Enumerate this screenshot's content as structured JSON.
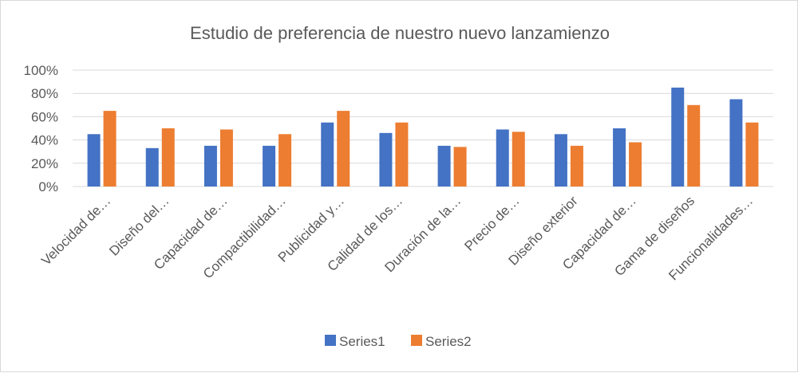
{
  "chart_data": {
    "type": "bar",
    "title": "Estudio de preferencia de nuestro nuevo lanzamienzo",
    "categories": [
      "Velocidad de…",
      "Diseño del…",
      "Capacidad de…",
      "Compactibilidad…",
      "Publicidad y…",
      "Calidad de los…",
      "Duración de la…",
      "Precio de…",
      "Diseño exterior",
      "Capacidad de…",
      "Gama de diseños",
      "Funcionalidades…"
    ],
    "series": [
      {
        "name": "Series1",
        "color": "#4472c4",
        "values": [
          0.45,
          0.33,
          0.35,
          0.35,
          0.55,
          0.46,
          0.35,
          0.49,
          0.45,
          0.5,
          0.85,
          0.75
        ]
      },
      {
        "name": "Series2",
        "color": "#ed7d31",
        "values": [
          0.65,
          0.5,
          0.49,
          0.45,
          0.65,
          0.55,
          0.34,
          0.47,
          0.35,
          0.38,
          0.7,
          0.55
        ]
      }
    ],
    "ylim": [
      0,
      1
    ],
    "yticks": [
      "0%",
      "20%",
      "40%",
      "60%",
      "80%",
      "100%"
    ],
    "grid": true,
    "legend": "bottom"
  }
}
